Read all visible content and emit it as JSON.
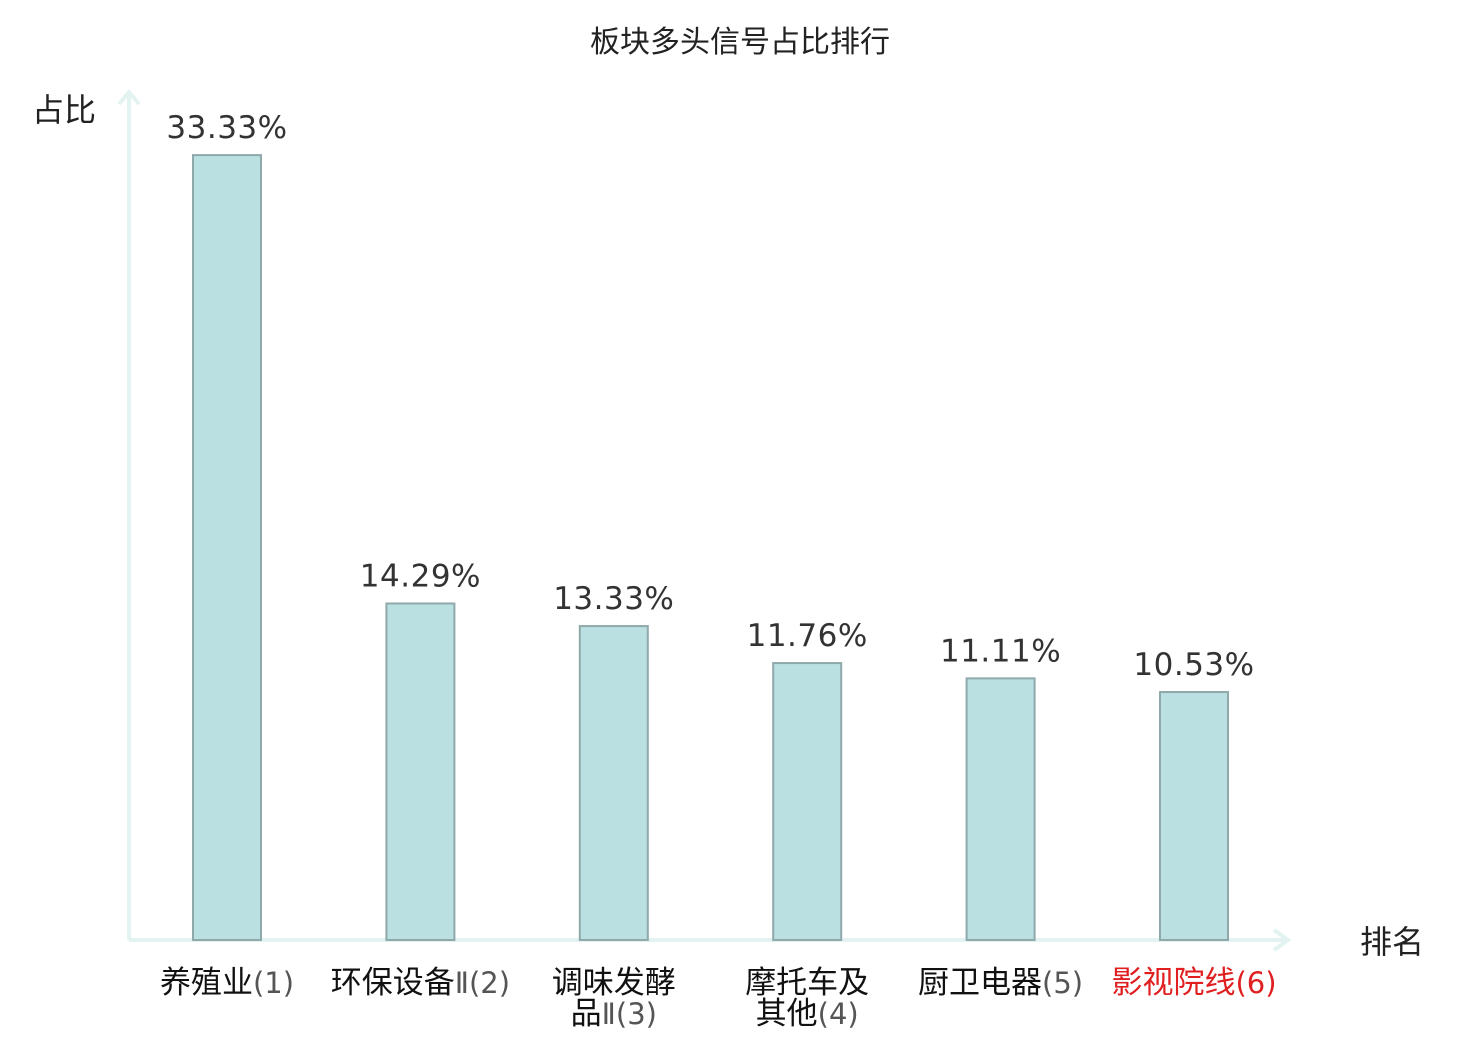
{
  "chart_data": {
    "type": "bar",
    "title": "板块多头信号占比排行",
    "ylabel": "占比",
    "xlabel": "排名",
    "ylim": [
      0,
      35.5
    ],
    "bar_color": "#bbe0e2",
    "bar_edge_color": "#8fa9ab",
    "axis_color": "#e2f3f1",
    "highlight_color": "#e02020",
    "grid": false,
    "categories": [
      {
        "lines": [
          {
            "name": "养殖业",
            "rank": "(1)"
          }
        ],
        "value": 33.33,
        "label": "33.33%",
        "highlight": false
      },
      {
        "lines": [
          {
            "name": "环保设备",
            "rank": ""
          },
          {
            "name": "",
            "rank": "Ⅱ(2)"
          }
        ],
        "value": 14.29,
        "label": "14.29%",
        "highlight": false
      },
      {
        "lines": [
          {
            "name": "调味发酵",
            "rank": ""
          },
          {
            "name": "品",
            "rank": "Ⅱ(3)"
          }
        ],
        "value": 13.33,
        "label": "13.33%",
        "highlight": false
      },
      {
        "lines": [
          {
            "name": "摩托车及",
            "rank": ""
          },
          {
            "name": "其他",
            "rank": "(4)"
          }
        ],
        "value": 11.76,
        "label": "11.76%",
        "highlight": false
      },
      {
        "lines": [
          {
            "name": "厨卫电器",
            "rank": "(5)"
          }
        ],
        "value": 11.11,
        "label": "11.11%",
        "highlight": false
      },
      {
        "lines": [
          {
            "name": "影视院线",
            "rank": "(6)"
          }
        ],
        "value": 10.53,
        "label": "10.53%",
        "highlight": true
      }
    ]
  }
}
